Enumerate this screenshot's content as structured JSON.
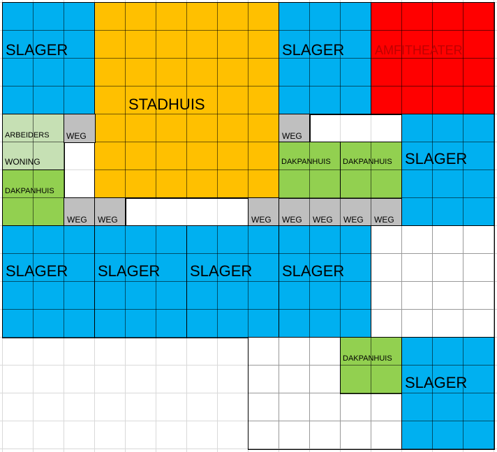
{
  "colors": {
    "slager": "#00b0f0",
    "stadhuis": "#ffc000",
    "amfitheater": "#ff0000",
    "dakpanhuis": "#92d050",
    "arbeiders": "#c6e0b4",
    "weg": "#bfbfbf",
    "leeg": "#ffffff"
  },
  "labels": {
    "slager": "SLAGER",
    "stadhuis": "STADHUIS",
    "amfitheater": "AMFITHEATER",
    "dakpanhuis": "DAKPANHUIS",
    "arbeiders_1": "ARBEIDERS",
    "arbeiders_2": "WONING",
    "weg": "WEG"
  }
}
